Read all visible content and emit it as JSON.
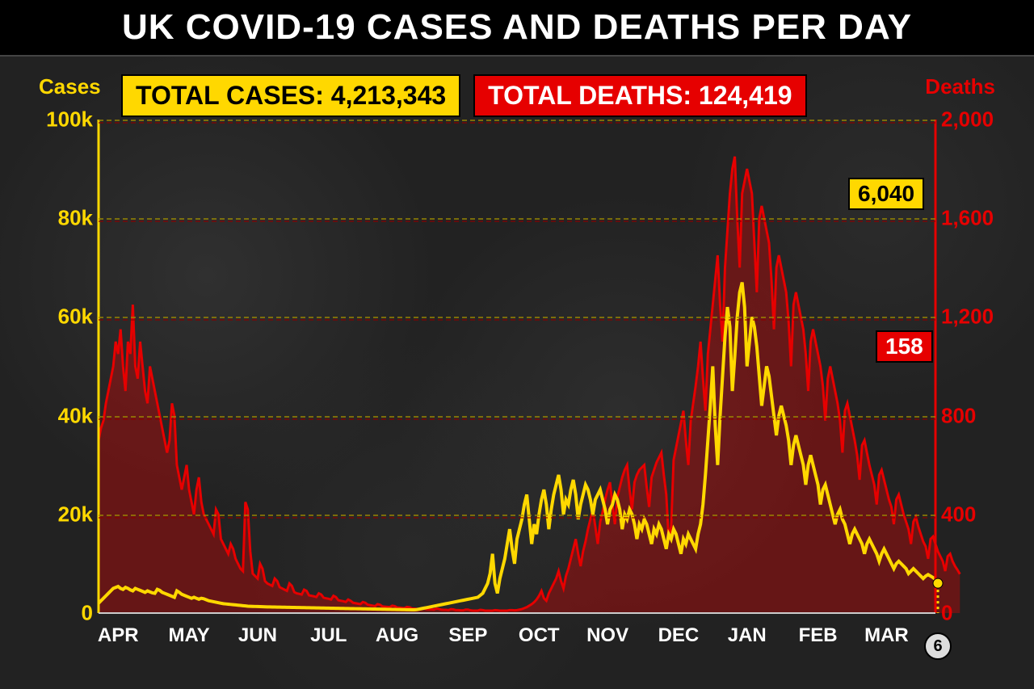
{
  "title": "UK COVID-19 CASES AND DEATHS PER DAY",
  "totals": {
    "cases_label": "TOTAL CASES: 4,213,343",
    "deaths_label": "TOTAL DEATHS: 124,419"
  },
  "axis_titles": {
    "cases": "Cases",
    "deaths": "Deaths"
  },
  "callouts": {
    "cases_value": "6,040",
    "deaths_value": "158",
    "date_marker": "6"
  },
  "colors": {
    "cases": "#ffd800",
    "deaths": "#e60000",
    "deaths_fill": "rgba(230,0,0,0.35)",
    "title_bg": "#000000",
    "title_fg": "#ffffff",
    "grid_yellow": "#a08c00",
    "grid_red": "#8b0000",
    "axis_line": "#999999",
    "bg": "#1f1f1f"
  },
  "left_axis": {
    "label": "Cases",
    "min": 0,
    "max": 100000,
    "ticks": [
      0,
      20000,
      40000,
      60000,
      80000,
      100000
    ],
    "tick_labels": [
      "0",
      "20k",
      "40k",
      "60k",
      "80k",
      "100k"
    ]
  },
  "right_axis": {
    "label": "Deaths",
    "min": 0,
    "max": 2000,
    "ticks": [
      0,
      400,
      800,
      1200,
      1600,
      2000
    ],
    "tick_labels": [
      "0",
      "400",
      "800",
      "1,200",
      "1,600",
      "2,000"
    ]
  },
  "x_axis": {
    "months": [
      "APR",
      "MAY",
      "JUN",
      "JUL",
      "AUG",
      "SEP",
      "OCT",
      "NOV",
      "DEC",
      "JAN",
      "FEB",
      "MAR"
    ],
    "n_days": 343
  },
  "series": {
    "cases": [
      2000,
      2500,
      3000,
      3500,
      4000,
      4500,
      5000,
      5200,
      5400,
      5000,
      4800,
      5200,
      5000,
      4700,
      4500,
      5000,
      4800,
      4600,
      4400,
      4200,
      4500,
      4300,
      4100,
      4000,
      4800,
      4600,
      4200,
      4000,
      3800,
      3600,
      3400,
      3200,
      4500,
      4200,
      3800,
      3600,
      3400,
      3200,
      3000,
      3200,
      3000,
      2800,
      3000,
      2900,
      2700,
      2500,
      2400,
      2300,
      2200,
      2100,
      2000,
      1900,
      1850,
      1800,
      1750,
      1700,
      1650,
      1600,
      1550,
      1500,
      1450,
      1400,
      1380,
      1360,
      1340,
      1320,
      1300,
      1280,
      1260,
      1250,
      1240,
      1230,
      1220,
      1210,
      1200,
      1190,
      1180,
      1170,
      1160,
      1150,
      1140,
      1130,
      1120,
      1110,
      1100,
      1090,
      1080,
      1070,
      1060,
      1050,
      1040,
      1030,
      1020,
      1010,
      1000,
      990,
      980,
      970,
      960,
      950,
      940,
      930,
      920,
      910,
      900,
      890,
      880,
      870,
      860,
      850,
      840,
      830,
      820,
      810,
      800,
      790,
      780,
      770,
      760,
      750,
      740,
      730,
      720,
      710,
      700,
      690,
      680,
      670,
      660,
      650,
      700,
      800,
      900,
      1000,
      1100,
      1200,
      1300,
      1400,
      1500,
      1600,
      1700,
      1800,
      1900,
      2000,
      2100,
      2200,
      2300,
      2400,
      2500,
      2600,
      2700,
      2800,
      2900,
      3000,
      3100,
      3200,
      3600,
      4000,
      5000,
      6000,
      8000,
      12000,
      6000,
      4000,
      7000,
      9000,
      11000,
      14000,
      17000,
      13000,
      10000,
      15000,
      17000,
      19000,
      22000,
      24000,
      19000,
      14000,
      18000,
      16000,
      20000,
      23000,
      25000,
      22000,
      17000,
      21000,
      24000,
      26000,
      28000,
      25000,
      20000,
      23000,
      22000,
      25000,
      27000,
      24000,
      19000,
      22000,
      24000,
      26000,
      25000,
      23000,
      20000,
      23000,
      24000,
      25000,
      23000,
      21000,
      18000,
      21000,
      22000,
      24000,
      23000,
      21000,
      17000,
      20000,
      19000,
      21000,
      20000,
      18000,
      15000,
      18000,
      17000,
      19000,
      18000,
      16000,
      14000,
      17000,
      16000,
      18000,
      17000,
      15000,
      13000,
      16000,
      15000,
      17000,
      16000,
      14000,
      12000,
      15000,
      14000,
      16000,
      15000,
      14000,
      13000,
      16000,
      18000,
      22000,
      28000,
      35000,
      42000,
      50000,
      38000,
      30000,
      40000,
      48000,
      56000,
      62000,
      58000,
      45000,
      52000,
      60000,
      65000,
      67000,
      62000,
      50000,
      55000,
      60000,
      58000,
      54000,
      48000,
      42000,
      46000,
      50000,
      48000,
      44000,
      40000,
      36000,
      40000,
      42000,
      40000,
      38000,
      35000,
      30000,
      34000,
      36000,
      34000,
      32000,
      30000,
      26000,
      30000,
      32000,
      30000,
      28000,
      26000,
      22000,
      25000,
      26000,
      24000,
      22000,
      20000,
      18000,
      20000,
      21000,
      19000,
      18000,
      16000,
      14000,
      16000,
      17000,
      16000,
      15000,
      14000,
      12000,
      14000,
      15000,
      14000,
      13000,
      12000,
      10500,
      12000,
      13000,
      12000,
      11000,
      10000,
      9000,
      10000,
      10500,
      10000,
      9500,
      9000,
      8000,
      8500,
      9000,
      8500,
      8000,
      7500,
      7000,
      7500,
      7800,
      7500,
      7200,
      6800,
      6040
    ],
    "deaths": [
      700,
      750,
      780,
      850,
      900,
      950,
      1000,
      1100,
      1050,
      1150,
      1000,
      900,
      1100,
      1050,
      1250,
      1000,
      950,
      1100,
      1000,
      900,
      850,
      1000,
      950,
      900,
      850,
      800,
      750,
      700,
      650,
      700,
      850,
      800,
      600,
      550,
      500,
      550,
      600,
      500,
      450,
      400,
      500,
      550,
      450,
      400,
      380,
      360,
      340,
      320,
      420,
      400,
      300,
      280,
      260,
      240,
      280,
      260,
      220,
      200,
      180,
      170,
      450,
      420,
      250,
      160,
      150,
      140,
      200,
      180,
      130,
      120,
      115,
      110,
      140,
      130,
      105,
      100,
      95,
      90,
      120,
      110,
      85,
      80,
      78,
      75,
      95,
      90,
      72,
      70,
      68,
      65,
      80,
      75,
      62,
      60,
      58,
      55,
      70,
      65,
      52,
      50,
      48,
      45,
      55,
      50,
      42,
      40,
      38,
      36,
      45,
      42,
      34,
      32,
      30,
      28,
      36,
      34,
      27,
      26,
      25,
      24,
      30,
      28,
      23,
      22,
      21,
      20,
      25,
      24,
      19,
      18,
      17,
      16,
      20,
      19,
      16,
      15,
      15,
      14,
      18,
      17,
      14,
      13,
      13,
      12,
      16,
      15,
      12,
      12,
      11,
      11,
      14,
      14,
      11,
      10,
      10,
      10,
      13,
      12,
      10,
      10,
      10,
      10,
      12,
      11,
      10,
      10,
      10,
      10,
      12,
      12,
      11,
      12,
      14,
      16,
      20,
      24,
      30,
      36,
      44,
      55,
      70,
      90,
      60,
      50,
      80,
      100,
      120,
      140,
      170,
      130,
      100,
      150,
      180,
      220,
      260,
      300,
      240,
      190,
      250,
      290,
      340,
      380,
      420,
      350,
      280,
      370,
      410,
      460,
      500,
      530,
      440,
      360,
      470,
      510,
      550,
      580,
      600,
      500,
      420,
      530,
      560,
      580,
      590,
      600,
      510,
      430,
      550,
      580,
      610,
      630,
      650,
      560,
      480,
      300,
      350,
      620,
      670,
      720,
      770,
      820,
      700,
      600,
      780,
      850,
      920,
      1000,
      1100,
      950,
      820,
      1050,
      1150,
      1250,
      1350,
      1450,
      1250,
      1100,
      1400,
      1550,
      1700,
      1800,
      1850,
      1600,
      1400,
      1700,
      1750,
      1800,
      1750,
      1700,
      1500,
      1300,
      1600,
      1650,
      1600,
      1550,
      1500,
      1350,
      1150,
      1400,
      1450,
      1400,
      1350,
      1300,
      1180,
      1000,
      1250,
      1300,
      1250,
      1200,
      1150,
      1050,
      900,
      1100,
      1150,
      1100,
      1050,
      1000,
      920,
      780,
      950,
      1000,
      950,
      900,
      850,
      780,
      650,
      820,
      850,
      800,
      750,
      700,
      640,
      540,
      680,
      700,
      650,
      600,
      560,
      520,
      440,
      560,
      580,
      540,
      500,
      460,
      430,
      360,
      460,
      480,
      440,
      400,
      370,
      340,
      280,
      370,
      390,
      350,
      320,
      290,
      270,
      220,
      300,
      310,
      280,
      250,
      230,
      210,
      170,
      230,
      240,
      210,
      190,
      175,
      158
    ]
  }
}
